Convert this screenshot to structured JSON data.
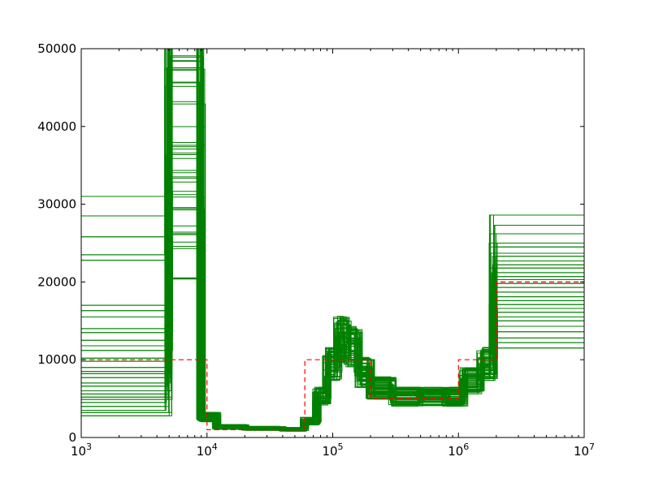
{
  "chart_data": {
    "type": "line",
    "title": "",
    "xlabel": "",
    "ylabel": "",
    "x_scale": "log",
    "xlim": [
      1000,
      10000000
    ],
    "ylim": [
      0,
      50000
    ],
    "grid": false,
    "x_ticks": [
      {
        "value": 1000,
        "base": "10",
        "exp": "3"
      },
      {
        "value": 10000,
        "base": "10",
        "exp": "4"
      },
      {
        "value": 100000,
        "base": "10",
        "exp": "5"
      },
      {
        "value": 1000000,
        "base": "10",
        "exp": "6"
      },
      {
        "value": 10000000,
        "base": "10",
        "exp": "7"
      }
    ],
    "y_ticks": [
      {
        "value": 0,
        "label": "0"
      },
      {
        "value": 10000,
        "label": "10000"
      },
      {
        "value": 20000,
        "label": "20000"
      },
      {
        "value": 30000,
        "label": "30000"
      },
      {
        "value": 40000,
        "label": "40000"
      },
      {
        "value": 50000,
        "label": "50000"
      }
    ],
    "colors": {
      "estimates": "#008000",
      "truth": "#ff0000"
    },
    "series": [
      {
        "style": "dashed-step",
        "color": "#ff0000",
        "x": [
          1000,
          10000,
          60000,
          200000,
          1000000,
          2000000,
          10000000
        ],
        "y": [
          10000,
          1000,
          10000,
          5000,
          10000,
          20000,
          20000
        ]
      }
    ],
    "ensemble": {
      "style": "step",
      "color": "#008000",
      "count": 60,
      "breakpoints": [
        1000,
        5000,
        9000,
        12000,
        20000,
        40000,
        60000,
        75000,
        90000,
        110000,
        130000,
        160000,
        200000,
        300000,
        500000,
        800000,
        1100000,
        1500000,
        1900000,
        10000000
      ],
      "mean_curve": [
        9000,
        40000,
        2500,
        1300,
        1100,
        1000,
        2000,
        5000,
        9000,
        12000,
        11000,
        8000,
        6000,
        5000,
        5000,
        5000,
        7000,
        9000,
        18000,
        18000
      ],
      "left_values": [
        31000,
        28500,
        25800,
        23500,
        22800,
        17000,
        16300,
        15500,
        14000,
        13500,
        12500,
        11800,
        11200,
        10200,
        9800,
        9000,
        8500,
        8200,
        7700,
        7000,
        6600,
        6000,
        5600,
        5200,
        4900,
        4500,
        4000,
        3500,
        3200,
        2800
      ],
      "right_values": [
        28600,
        27300,
        26200,
        25000,
        24500,
        23700,
        23300,
        22700,
        22200,
        21800,
        21200,
        20700,
        20300,
        19800,
        19300,
        18700,
        18100,
        17600,
        17100,
        16600,
        16100,
        15500,
        15000,
        14300,
        13600,
        12800,
        12200,
        11500
      ]
    }
  }
}
